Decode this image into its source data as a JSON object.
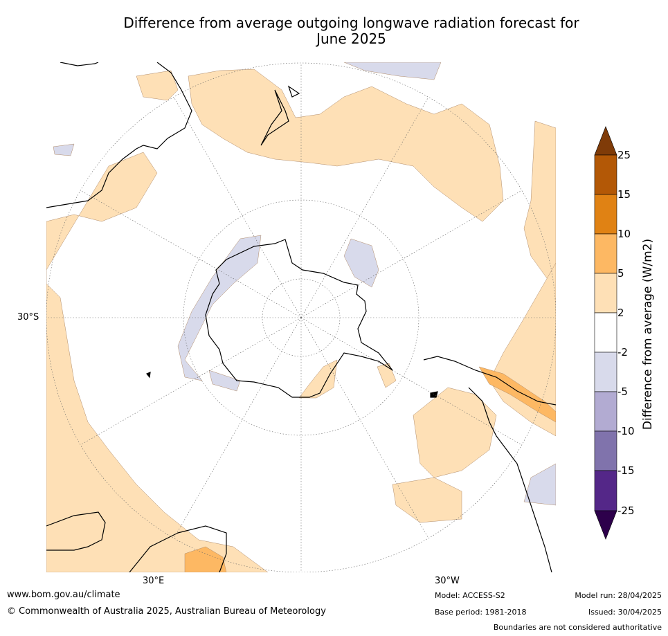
{
  "title": {
    "line1": "Difference from average outgoing longwave radiation forecast for",
    "line2": "June 2025"
  },
  "map": {
    "projection": "south-polar-stereographic",
    "lat_label": "30°S",
    "lon_labels": [
      "30°E",
      "30°W"
    ],
    "land_outline_color": "#000000"
  },
  "colorbar": {
    "title": "Difference from average (W/m2)",
    "ticks": [
      "25",
      "15",
      "10",
      "5",
      "2",
      "-2",
      "-5",
      "-10",
      "-15",
      "-25"
    ],
    "colors": [
      "#7f3b08",
      "#b35806",
      "#e08214",
      "#fdb863",
      "#fee0b6",
      "#ffffff",
      "#d8daeb",
      "#b2abd2",
      "#8073ac",
      "#542788",
      "#2d004b"
    ]
  },
  "footer": {
    "website": "www.bom.gov.au/climate",
    "copyright": "© Commonwealth of Australia 2025, Australian Bureau of Meteorology",
    "model": "Model: ACCESS-S2",
    "base_period": "Base period: 1981-2018",
    "model_run": "Model run: 28/04/2025",
    "issued": "Issued: 30/04/2025",
    "disclaimer": "Boundaries are not considered authoritative"
  }
}
